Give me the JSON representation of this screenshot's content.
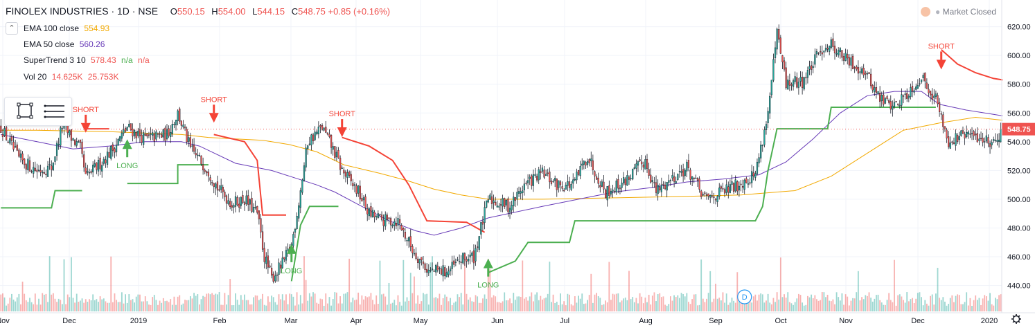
{
  "header": {
    "symbol": "FINOLEX INDUSTRIES · 1D · NSE",
    "open_key": "O",
    "open": "550.15",
    "high_key": "H",
    "high": "554.00",
    "low_key": "L",
    "low": "544.15",
    "close_key": "C",
    "close": "548.75",
    "change": "+0.85 (+0.16%)"
  },
  "status": {
    "text": "Market Closed"
  },
  "legend": {
    "toggle_icon": "chevron-up-icon",
    "items": [
      {
        "label": "EMA 100 close",
        "values": [
          "554.93"
        ],
        "colors": [
          "#f2a900"
        ]
      },
      {
        "label": "EMA 50 close",
        "values": [
          "560.26"
        ],
        "colors": [
          "#673ab7"
        ]
      },
      {
        "label": "SuperTrend 3 10",
        "values": [
          "578.43",
          "n/a",
          "n/a"
        ],
        "colors": [
          "#ef5350",
          "#4caf50",
          "#ef5350"
        ]
      },
      {
        "label": "Vol 20",
        "values": [
          "14.625K",
          "25.753K"
        ],
        "colors": [
          "#ef5350",
          "#ef5350"
        ]
      }
    ]
  },
  "toolbar": {
    "icons": [
      "square-select-icon",
      "list-settings-icon"
    ]
  },
  "colors": {
    "up": "#26a69a",
    "down": "#ef5350",
    "ema100": "#f2a900",
    "ema50": "#673ab7",
    "st_up": "#4caf50",
    "st_down": "#f44336",
    "price_line": "#ef5350"
  },
  "chart_data": {
    "type": "candlestick",
    "price_axis": {
      "ticks": [
        440,
        460,
        480,
        500,
        520,
        540,
        560,
        580,
        600,
        620
      ],
      "range": [
        425,
        630
      ]
    },
    "time_axis": {
      "labels": [
        "Nov",
        "Dec",
        "2019",
        "Feb",
        "Mar",
        "Apr",
        "May",
        "Jun",
        "Jul",
        "Aug",
        "Sep",
        "Oct",
        "Nov",
        "Dec",
        "2020"
      ]
    },
    "last_price": "548.75",
    "ema100": [
      [
        0,
        548
      ],
      [
        20,
        548
      ],
      [
        60,
        547
      ],
      [
        80,
        546
      ],
      [
        100,
        545
      ],
      [
        115,
        543
      ],
      [
        130,
        542
      ],
      [
        145,
        541
      ],
      [
        160,
        538
      ],
      [
        175,
        533
      ],
      [
        190,
        524
      ],
      [
        210,
        518
      ],
      [
        225,
        513
      ],
      [
        240,
        507
      ],
      [
        255,
        503
      ],
      [
        270,
        500
      ],
      [
        300,
        500
      ],
      [
        340,
        501
      ],
      [
        380,
        502
      ],
      [
        410,
        503
      ],
      [
        440,
        506
      ],
      [
        460,
        516
      ],
      [
        480,
        532
      ],
      [
        500,
        548
      ],
      [
        520,
        553
      ],
      [
        540,
        557
      ],
      [
        555,
        555
      ]
    ],
    "ema50": [
      [
        0,
        545
      ],
      [
        20,
        540
      ],
      [
        40,
        535
      ],
      [
        60,
        537
      ],
      [
        80,
        540
      ],
      [
        100,
        540
      ],
      [
        110,
        537
      ],
      [
        130,
        525
      ],
      [
        150,
        520
      ],
      [
        160,
        516
      ],
      [
        175,
        510
      ],
      [
        185,
        505
      ],
      [
        200,
        495
      ],
      [
        215,
        485
      ],
      [
        230,
        478
      ],
      [
        240,
        475
      ],
      [
        255,
        480
      ],
      [
        270,
        487
      ],
      [
        300,
        495
      ],
      [
        320,
        500
      ],
      [
        340,
        505
      ],
      [
        360,
        508
      ],
      [
        380,
        512
      ],
      [
        400,
        514
      ],
      [
        420,
        517
      ],
      [
        435,
        526
      ],
      [
        450,
        542
      ],
      [
        465,
        560
      ],
      [
        480,
        572
      ],
      [
        495,
        575
      ],
      [
        510,
        575
      ],
      [
        520,
        566
      ],
      [
        535,
        562
      ],
      [
        555,
        558
      ]
    ],
    "supertrend": [
      {
        "trend": "up",
        "points": [
          [
            0,
            494
          ],
          [
            28,
            494
          ],
          [
            30,
            506
          ],
          [
            45,
            506
          ]
        ]
      },
      {
        "trend": "down",
        "points": [
          [
            47,
            549
          ],
          [
            60,
            549
          ]
        ]
      },
      {
        "trend": "up",
        "points": [
          [
            70,
            511
          ],
          [
            98,
            511
          ],
          [
            98,
            524
          ],
          [
            115,
            524
          ]
        ]
      },
      {
        "trend": "down",
        "points": [
          [
            118,
            545
          ],
          [
            135,
            540
          ],
          [
            142,
            527
          ],
          [
            145,
            489
          ],
          [
            158,
            489
          ]
        ]
      },
      {
        "trend": "up",
        "points": [
          [
            161,
            443
          ],
          [
            166,
            482
          ],
          [
            171,
            495
          ],
          [
            187,
            495
          ]
        ]
      },
      {
        "trend": "down",
        "points": [
          [
            189,
            543
          ],
          [
            204,
            537
          ],
          [
            217,
            527
          ],
          [
            226,
            510
          ],
          [
            236,
            485
          ],
          [
            258,
            484
          ],
          [
            268,
            477
          ]
        ]
      },
      {
        "trend": "up",
        "points": [
          [
            270,
            449
          ],
          [
            285,
            457
          ],
          [
            292,
            470
          ],
          [
            315,
            470
          ],
          [
            318,
            485
          ],
          [
            418,
            485
          ],
          [
            422,
            495
          ],
          [
            425,
            520
          ],
          [
            430,
            549
          ],
          [
            458,
            549
          ],
          [
            460,
            564
          ],
          [
            518,
            564
          ]
        ]
      },
      {
        "trend": "down",
        "points": [
          [
            521,
            604
          ],
          [
            530,
            594
          ],
          [
            540,
            588
          ],
          [
            550,
            584
          ],
          [
            555,
            583
          ]
        ]
      }
    ],
    "signals": [
      {
        "label": "SHORT",
        "type": "short",
        "x": 47,
        "price": 553
      },
      {
        "label": "LONG",
        "type": "long",
        "x": 70,
        "price": 535
      },
      {
        "label": "SHORT",
        "type": "short",
        "x": 118,
        "price": 560
      },
      {
        "label": "LONG",
        "type": "long",
        "x": 161,
        "price": 462
      },
      {
        "label": "SHORT",
        "type": "short",
        "x": 189,
        "price": 550
      },
      {
        "label": "LONG",
        "type": "long",
        "x": 270,
        "price": 452
      },
      {
        "label": "SHORT",
        "type": "short",
        "x": 521,
        "price": 597
      }
    ],
    "dividend_marker": {
      "label": "D",
      "x": 412
    },
    "price_keyframes": [
      [
        0,
        550
      ],
      [
        10,
        528
      ],
      [
        20,
        520
      ],
      [
        28,
        522
      ],
      [
        34,
        551
      ],
      [
        44,
        535
      ],
      [
        47,
        515
      ],
      [
        55,
        525
      ],
      [
        62,
        535
      ],
      [
        70,
        550
      ],
      [
        80,
        542
      ],
      [
        92,
        545
      ],
      [
        98,
        560
      ],
      [
        105,
        535
      ],
      [
        115,
        520
      ],
      [
        120,
        508
      ],
      [
        128,
        497
      ],
      [
        135,
        500
      ],
      [
        142,
        490
      ],
      [
        146,
        460
      ],
      [
        150,
        445
      ],
      [
        156,
        455
      ],
      [
        161,
        468
      ],
      [
        165,
        498
      ],
      [
        170,
        540
      ],
      [
        178,
        550
      ],
      [
        185,
        532
      ],
      [
        189,
        520
      ],
      [
        198,
        505
      ],
      [
        204,
        490
      ],
      [
        212,
        485
      ],
      [
        220,
        485
      ],
      [
        228,
        465
      ],
      [
        237,
        450
      ],
      [
        248,
        450
      ],
      [
        255,
        458
      ],
      [
        262,
        460
      ],
      [
        266,
        480
      ],
      [
        270,
        500
      ],
      [
        282,
        495
      ],
      [
        290,
        510
      ],
      [
        300,
        518
      ],
      [
        308,
        510
      ],
      [
        317,
        510
      ],
      [
        325,
        530
      ],
      [
        335,
        505
      ],
      [
        345,
        512
      ],
      [
        357,
        527
      ],
      [
        363,
        505
      ],
      [
        372,
        515
      ],
      [
        380,
        522
      ],
      [
        390,
        500
      ],
      [
        400,
        505
      ],
      [
        408,
        510
      ],
      [
        418,
        518
      ],
      [
        425,
        560
      ],
      [
        430,
        615
      ],
      [
        435,
        580
      ],
      [
        444,
        582
      ],
      [
        448,
        590
      ],
      [
        455,
        605
      ],
      [
        460,
        608
      ],
      [
        470,
        595
      ],
      [
        478,
        590
      ],
      [
        487,
        570
      ],
      [
        495,
        565
      ],
      [
        503,
        575
      ],
      [
        510,
        585
      ],
      [
        518,
        570
      ],
      [
        525,
        540
      ],
      [
        535,
        545
      ],
      [
        550,
        540
      ],
      [
        555,
        549
      ]
    ],
    "volume_note": "volume bars shown, no axis"
  }
}
